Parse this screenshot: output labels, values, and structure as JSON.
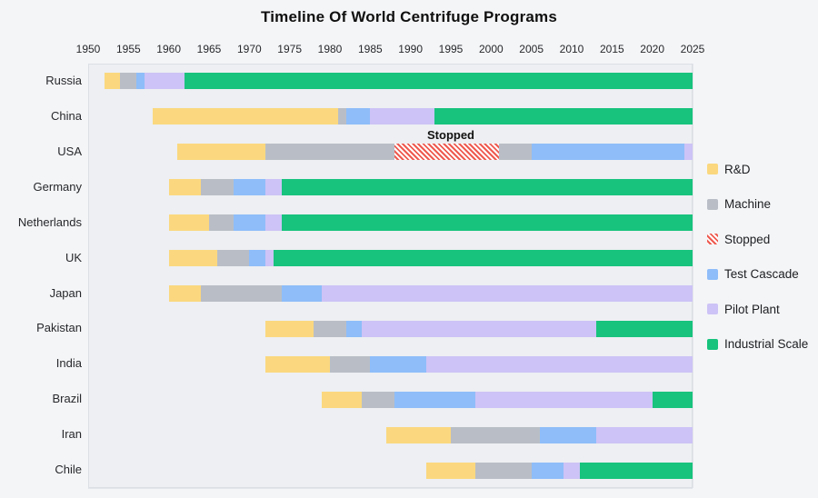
{
  "page": {
    "title": "Timeline Of World Centrifuge Programs"
  },
  "annotation": {
    "text": "Stopped",
    "year": 1995,
    "category": "USA"
  },
  "colors": {
    "R&D": "#FBD87F",
    "Machine": "#B9BEC6",
    "Test Cascade": "#8EBDF9",
    "Pilot Plant": "#CDC3F6",
    "Industrial Scale": "#17C37D",
    "Stopped_stripe": "#EE5A50",
    "Stopped_bg": "#FFFFFF"
  },
  "legend": [
    "R&D",
    "Machine",
    "Stopped",
    "Test Cascade",
    "Pilot Plant",
    "Industrial Scale"
  ],
  "chart_data": {
    "type": "bar",
    "subtype": "horizontal-stacked-timeline",
    "title": "Timeline Of World Centrifuge Programs",
    "xlabel": "",
    "ylabel": "",
    "xlim": [
      1950,
      2025
    ],
    "x_ticks": [
      1950,
      1955,
      1960,
      1965,
      1970,
      1975,
      1980,
      1985,
      1990,
      1995,
      2000,
      2005,
      2010,
      2015,
      2020,
      2025
    ],
    "grid": true,
    "legend_position": "right",
    "categories": [
      "Russia",
      "China",
      "USA",
      "Germany",
      "Netherlands",
      "UK",
      "Japan",
      "Pakistan",
      "India",
      "Brazil",
      "Iran",
      "Chile"
    ],
    "series": [
      {
        "country": "Russia",
        "segments": [
          {
            "phase": "R&D",
            "start": 1952,
            "end": 1954
          },
          {
            "phase": "Machine",
            "start": 1954,
            "end": 1956
          },
          {
            "phase": "Test Cascade",
            "start": 1956,
            "end": 1957
          },
          {
            "phase": "Pilot Plant",
            "start": 1957,
            "end": 1962
          },
          {
            "phase": "Industrial Scale",
            "start": 1962,
            "end": 2025
          }
        ]
      },
      {
        "country": "China",
        "segments": [
          {
            "phase": "R&D",
            "start": 1958,
            "end": 1981
          },
          {
            "phase": "Machine",
            "start": 1981,
            "end": 1982
          },
          {
            "phase": "Test Cascade",
            "start": 1982,
            "end": 1985
          },
          {
            "phase": "Pilot Plant",
            "start": 1985,
            "end": 1993
          },
          {
            "phase": "Industrial Scale",
            "start": 1993,
            "end": 2025
          }
        ]
      },
      {
        "country": "USA",
        "segments": [
          {
            "phase": "R&D",
            "start": 1961,
            "end": 1972
          },
          {
            "phase": "Machine",
            "start": 1972,
            "end": 1988
          },
          {
            "phase": "Stopped",
            "start": 1988,
            "end": 2001
          },
          {
            "phase": "Machine",
            "start": 2001,
            "end": 2005
          },
          {
            "phase": "Test Cascade",
            "start": 2005,
            "end": 2024
          },
          {
            "phase": "Pilot Plant",
            "start": 2024,
            "end": 2025
          }
        ]
      },
      {
        "country": "Germany",
        "segments": [
          {
            "phase": "R&D",
            "start": 1960,
            "end": 1964
          },
          {
            "phase": "Machine",
            "start": 1964,
            "end": 1968
          },
          {
            "phase": "Test Cascade",
            "start": 1968,
            "end": 1972
          },
          {
            "phase": "Pilot Plant",
            "start": 1972,
            "end": 1974
          },
          {
            "phase": "Industrial Scale",
            "start": 1974,
            "end": 2025
          }
        ]
      },
      {
        "country": "Netherlands",
        "segments": [
          {
            "phase": "R&D",
            "start": 1960,
            "end": 1965
          },
          {
            "phase": "Machine",
            "start": 1965,
            "end": 1968
          },
          {
            "phase": "Test Cascade",
            "start": 1968,
            "end": 1972
          },
          {
            "phase": "Pilot Plant",
            "start": 1972,
            "end": 1974
          },
          {
            "phase": "Industrial Scale",
            "start": 1974,
            "end": 2025
          }
        ]
      },
      {
        "country": "UK",
        "segments": [
          {
            "phase": "R&D",
            "start": 1960,
            "end": 1966
          },
          {
            "phase": "Machine",
            "start": 1966,
            "end": 1970
          },
          {
            "phase": "Test Cascade",
            "start": 1970,
            "end": 1972
          },
          {
            "phase": "Pilot Plant",
            "start": 1972,
            "end": 1973
          },
          {
            "phase": "Industrial Scale",
            "start": 1973,
            "end": 2025
          }
        ]
      },
      {
        "country": "Japan",
        "segments": [
          {
            "phase": "R&D",
            "start": 1960,
            "end": 1964
          },
          {
            "phase": "Machine",
            "start": 1964,
            "end": 1974
          },
          {
            "phase": "Test Cascade",
            "start": 1974,
            "end": 1979
          },
          {
            "phase": "Pilot Plant",
            "start": 1979,
            "end": 2025
          }
        ]
      },
      {
        "country": "Pakistan",
        "segments": [
          {
            "phase": "R&D",
            "start": 1972,
            "end": 1978
          },
          {
            "phase": "Machine",
            "start": 1978,
            "end": 1982
          },
          {
            "phase": "Test Cascade",
            "start": 1982,
            "end": 1984
          },
          {
            "phase": "Pilot Plant",
            "start": 1984,
            "end": 2013
          },
          {
            "phase": "Industrial Scale",
            "start": 2013,
            "end": 2025
          }
        ]
      },
      {
        "country": "India",
        "segments": [
          {
            "phase": "R&D",
            "start": 1972,
            "end": 1980
          },
          {
            "phase": "Machine",
            "start": 1980,
            "end": 1985
          },
          {
            "phase": "Test Cascade",
            "start": 1985,
            "end": 1992
          },
          {
            "phase": "Pilot Plant",
            "start": 1992,
            "end": 2025
          }
        ]
      },
      {
        "country": "Brazil",
        "segments": [
          {
            "phase": "R&D",
            "start": 1979,
            "end": 1984
          },
          {
            "phase": "Machine",
            "start": 1984,
            "end": 1988
          },
          {
            "phase": "Test Cascade",
            "start": 1988,
            "end": 1998
          },
          {
            "phase": "Pilot Plant",
            "start": 1998,
            "end": 2020
          },
          {
            "phase": "Industrial Scale",
            "start": 2020,
            "end": 2025
          }
        ]
      },
      {
        "country": "Iran",
        "segments": [
          {
            "phase": "R&D",
            "start": 1987,
            "end": 1995
          },
          {
            "phase": "Machine",
            "start": 1995,
            "end": 2006
          },
          {
            "phase": "Test Cascade",
            "start": 2006,
            "end": 2013
          },
          {
            "phase": "Pilot Plant",
            "start": 2013,
            "end": 2025
          }
        ]
      },
      {
        "country": "Chile",
        "segments": [
          {
            "phase": "R&D",
            "start": 1992,
            "end": 1998
          },
          {
            "phase": "Machine",
            "start": 1998,
            "end": 2005
          },
          {
            "phase": "Test Cascade",
            "start": 2005,
            "end": 2009
          },
          {
            "phase": "Pilot Plant",
            "start": 2009,
            "end": 2011
          },
          {
            "phase": "Industrial Scale",
            "start": 2011,
            "end": 2025
          }
        ]
      }
    ]
  }
}
